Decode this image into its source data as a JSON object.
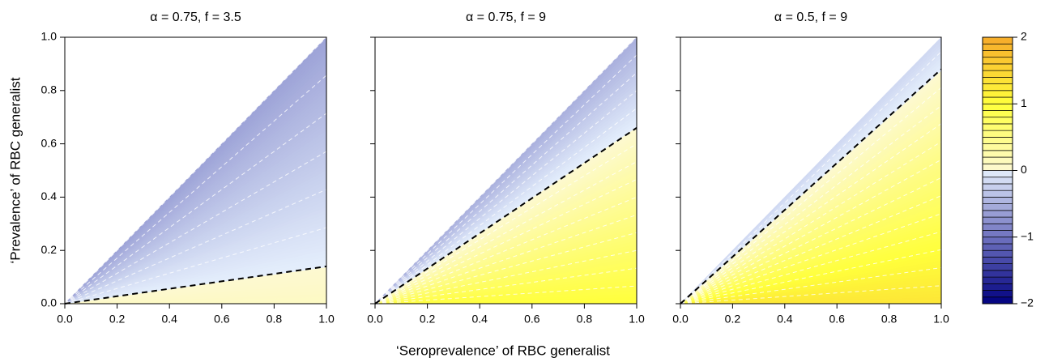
{
  "chart_data": [
    {
      "type": "contour",
      "title": "α = 0.75, f = 3.5",
      "ylabel": "‘Prevalence’ of RBC generalist",
      "xlim": [
        0,
        1
      ],
      "ylim": [
        0,
        1
      ],
      "xticks": [
        {
          "value": 0,
          "label": "0.0"
        },
        {
          "value": 0.2,
          "label": "0.2"
        },
        {
          "value": 0.4,
          "label": "0.4"
        },
        {
          "value": 0.6,
          "label": "0.6"
        },
        {
          "value": 0.8,
          "label": "0.8"
        },
        {
          "value": 1,
          "label": "1.0"
        }
      ],
      "yticks": [
        {
          "value": 0,
          "label": "0.0"
        },
        {
          "value": 0.2,
          "label": "0.2"
        },
        {
          "value": 0.4,
          "label": "0.4"
        },
        {
          "value": 0.6,
          "label": "0.6"
        },
        {
          "value": 0.8,
          "label": "0.8"
        },
        {
          "value": 1,
          "label": "1.0"
        }
      ],
      "z_at_x_axis": 0.1,
      "z_at_diagonal": -0.6,
      "zero_contour_end": 0.14
    },
    {
      "type": "contour",
      "title": "α = 0.75, f = 9",
      "xlabel": "‘Seroprevalence’ of RBC generalist",
      "xlim": [
        0,
        1
      ],
      "ylim": [
        0,
        1
      ],
      "xticks": [
        {
          "value": 0,
          "label": "0.0"
        },
        {
          "value": 0.2,
          "label": "0.2"
        },
        {
          "value": 0.4,
          "label": "0.4"
        },
        {
          "value": 0.6,
          "label": "0.6"
        },
        {
          "value": 0.8,
          "label": "0.8"
        },
        {
          "value": 1,
          "label": "1.0"
        }
      ],
      "yticks": [
        0,
        0.2,
        0.4,
        0.6,
        0.8,
        1
      ],
      "z_at_x_axis": 1.0,
      "z_at_diagonal": -0.5,
      "zero_contour_end": 0.66
    },
    {
      "type": "contour",
      "title": "α = 0.5, f = 9",
      "xlim": [
        0,
        1
      ],
      "ylim": [
        0,
        1
      ],
      "xticks": [
        {
          "value": 0,
          "label": "0.0"
        },
        {
          "value": 0.2,
          "label": "0.2"
        },
        {
          "value": 0.4,
          "label": "0.4"
        },
        {
          "value": 0.6,
          "label": "0.6"
        },
        {
          "value": 0.8,
          "label": "0.8"
        },
        {
          "value": 1,
          "label": "1.0"
        }
      ],
      "yticks": [
        0,
        0.2,
        0.4,
        0.6,
        0.8,
        1
      ],
      "z_at_x_axis": 1.3,
      "z_at_diagonal": -0.18,
      "zero_contour_end": 0.88
    },
    {
      "type": "colorbar",
      "zlim": [
        -2,
        2
      ],
      "nbands": 40,
      "yticks": [
        {
          "value": -2,
          "label": "−2"
        },
        {
          "value": -1,
          "label": "−1"
        },
        0,
        1,
        2
      ],
      "color_stops": [
        {
          "value": -2,
          "color": "#00007f"
        },
        {
          "value": -1,
          "color": "#6f72bf"
        },
        {
          "value": 0,
          "color": "#e4eefc"
        },
        {
          "value": 0,
          "color": "#fdf9d2"
        },
        {
          "value": 1,
          "color": "#ffff3c"
        },
        {
          "value": 2,
          "color": "#f7ab2a"
        }
      ]
    }
  ]
}
